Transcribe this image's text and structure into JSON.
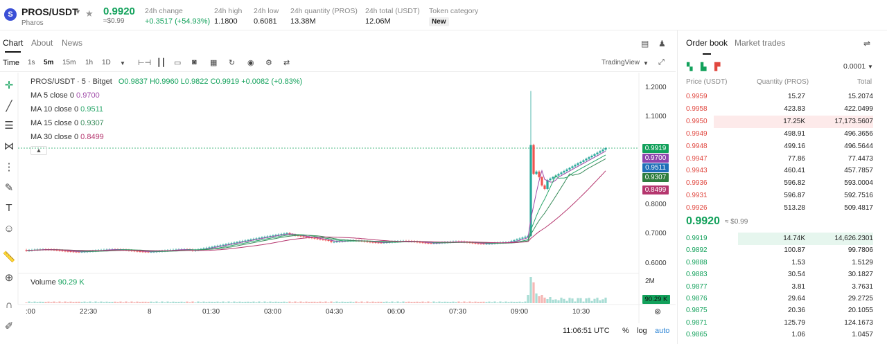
{
  "header": {
    "logo_letter": "S",
    "pair": "PROS/USDT",
    "pair_sub": "Pharos",
    "last_price": "0.9920",
    "last_price_usd": "≈$0.99",
    "stats": [
      {
        "label": "24h change",
        "value": "+0.3517 (+54.93%)"
      },
      {
        "label": "24h high",
        "value": "1.1800"
      },
      {
        "label": "24h low",
        "value": "0.6081"
      },
      {
        "label": "24h quantity (PROS)",
        "value": "13.38M"
      },
      {
        "label": "24h total (USDT)",
        "value": "12.06M"
      },
      {
        "label": "Token category",
        "value": "New"
      }
    ]
  },
  "left_tabs": [
    "Chart",
    "About",
    "News"
  ],
  "toolbar": {
    "time_label": "Time",
    "intervals": [
      "1s",
      "5m",
      "15m",
      "1h",
      "1D"
    ],
    "active_interval": "5m",
    "tradingview": "TradingView"
  },
  "chart": {
    "legend_title": "PROS/USDT · 5 · Bitget",
    "ohlc": "O0.9837  H0.9960  L0.9822  C0.9919  +0.0082 (+0.83%)",
    "ma": [
      {
        "label": "MA 5 close 0",
        "value": "0.9700",
        "color": "#a04aa8"
      },
      {
        "label": "MA 10 close 0",
        "value": "0.9511",
        "color": "#2aa76b"
      },
      {
        "label": "MA 15 close 0",
        "value": "0.9307",
        "color": "#3a8c5c"
      },
      {
        "label": "MA 30 close 0",
        "value": "0.8499",
        "color": "#b5366e"
      }
    ],
    "volume_label": "Volume",
    "volume_value": "90.29 K",
    "y_ticks": [
      "1.2000",
      "1.1000",
      "0.8000",
      "0.7000",
      "0.6000"
    ],
    "price_tags": [
      {
        "value": "0.9919",
        "color": "#12a15b"
      },
      {
        "value": "0.9700",
        "color": "#8e44ad"
      },
      {
        "value": "0.9511",
        "color": "#1e6fb8"
      },
      {
        "value": "0.9307",
        "color": "#2e7d3e"
      },
      {
        "value": "0.8499",
        "color": "#b5366e"
      }
    ],
    "vol_axis": "2M",
    "vol_tag": "90.29 K",
    "x_ticks": [
      ":00",
      "22:30",
      "8",
      "01:30",
      "03:00",
      "04:30",
      "06:00",
      "07:30",
      "09:00",
      "10:30"
    ],
    "clock": "11:06:51 UTC",
    "percent_btn": "%",
    "log_btn": "log",
    "auto_btn": "auto"
  },
  "orderbook": {
    "tabs": [
      "Order book",
      "Market trades"
    ],
    "precision": "0.0001",
    "headers": {
      "price": "Price (USDT)",
      "qty": "Quantity (PROS)",
      "total": "Total"
    },
    "asks": [
      {
        "price": "0.9959",
        "qty": "15.27",
        "total": "15.2074",
        "depth": 0.0
      },
      {
        "price": "0.9958",
        "qty": "423.83",
        "total": "422.0499",
        "depth": 0.0
      },
      {
        "price": "0.9950",
        "qty": "17.25K",
        "total": "17,173.5607",
        "depth": 1.0
      },
      {
        "price": "0.9949",
        "qty": "498.91",
        "total": "496.3656",
        "depth": 0.0
      },
      {
        "price": "0.9948",
        "qty": "499.16",
        "total": "496.5644",
        "depth": 0.0
      },
      {
        "price": "0.9947",
        "qty": "77.86",
        "total": "77.4473",
        "depth": 0.0
      },
      {
        "price": "0.9943",
        "qty": "460.41",
        "total": "457.7857",
        "depth": 0.0
      },
      {
        "price": "0.9936",
        "qty": "596.82",
        "total": "593.0004",
        "depth": 0.0
      },
      {
        "price": "0.9931",
        "qty": "596.87",
        "total": "592.7516",
        "depth": 0.0
      },
      {
        "price": "0.9926",
        "qty": "513.28",
        "total": "509.4817",
        "depth": 0.0
      }
    ],
    "mid_price": "0.9920",
    "mid_usd": "≈ $0.99",
    "bids": [
      {
        "price": "0.9919",
        "qty": "14.74K",
        "total": "14,626.2301",
        "depth": 0.85
      },
      {
        "price": "0.9892",
        "qty": "100.87",
        "total": "99.7806",
        "depth": 0.0
      },
      {
        "price": "0.9888",
        "qty": "1.53",
        "total": "1.5129",
        "depth": 0.0
      },
      {
        "price": "0.9883",
        "qty": "30.54",
        "total": "30.1827",
        "depth": 0.0
      },
      {
        "price": "0.9877",
        "qty": "3.81",
        "total": "3.7631",
        "depth": 0.0
      },
      {
        "price": "0.9876",
        "qty": "29.64",
        "total": "29.2725",
        "depth": 0.0
      },
      {
        "price": "0.9875",
        "qty": "20.36",
        "total": "20.1055",
        "depth": 0.0
      },
      {
        "price": "0.9871",
        "qty": "125.79",
        "total": "124.1673",
        "depth": 0.0
      },
      {
        "price": "0.9865",
        "qty": "1.06",
        "total": "1.0457",
        "depth": 0.0
      }
    ]
  }
}
